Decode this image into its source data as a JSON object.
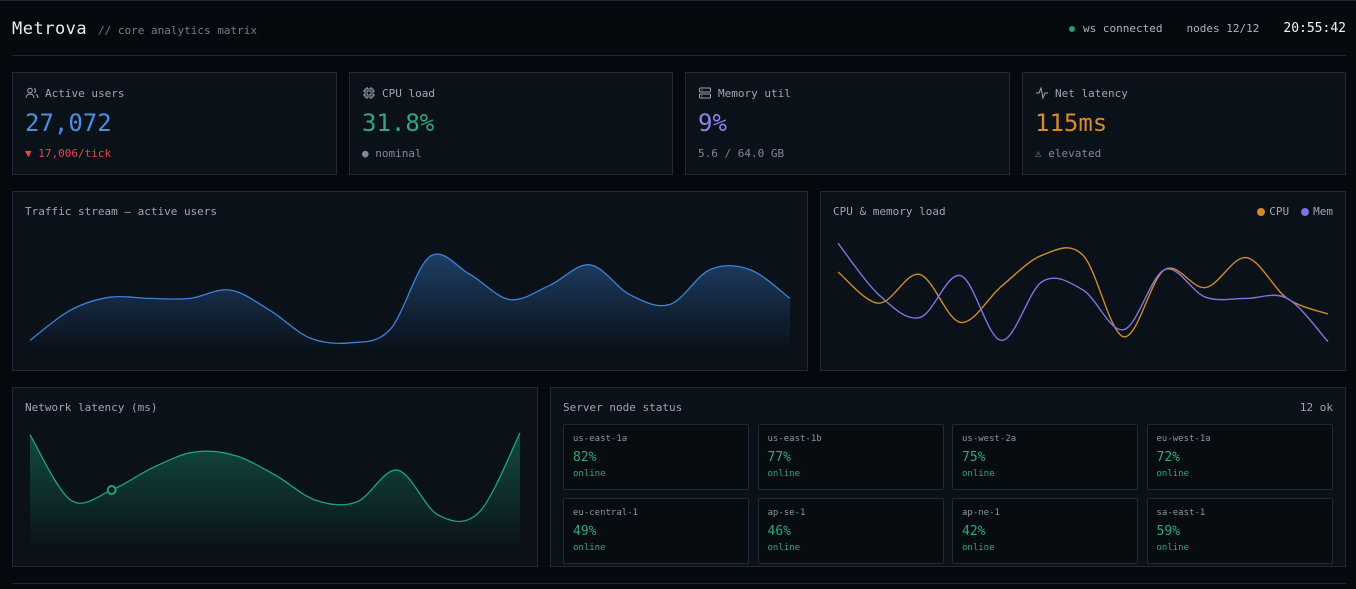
{
  "header": {
    "brand": "Metrova",
    "tagline": "// core analytics matrix",
    "status": "ws connected",
    "nodes": "nodes 12/12",
    "clock": "20:55:42"
  },
  "kpis": [
    {
      "label": "Active users",
      "value": "27,072",
      "note": "▼ 17,006/tick"
    },
    {
      "label": "CPU load",
      "value": "31.8%",
      "note": "● nominal"
    },
    {
      "label": "Memory util",
      "value": "9%",
      "note": "5.6 / 64.0 GB"
    },
    {
      "label": "Net latency",
      "value": "115ms",
      "note": "⚠ elevated"
    }
  ],
  "chart_data": [
    {
      "type": "area",
      "title": "Traffic stream — active users",
      "color": "#3b82d8",
      "ylim": [
        0,
        100
      ],
      "values": [
        8,
        33,
        44,
        43,
        43,
        50,
        33,
        10,
        6,
        17,
        78,
        63,
        42,
        54,
        71,
        46,
        38,
        67,
        67,
        43
      ]
    },
    {
      "type": "line",
      "title": "CPU & memory load",
      "ylim": [
        0,
        100
      ],
      "legend": "top-right",
      "series": [
        {
          "name": "CPU",
          "color": "#d08a2a",
          "values": [
            65,
            39,
            63,
            23,
            53,
            79,
            79,
            11,
            67,
            52,
            77,
            43,
            30
          ]
        },
        {
          "name": "Mem",
          "color": "#7c74e0",
          "values": [
            89,
            46,
            27,
            62,
            8,
            57,
            50,
            17,
            67,
            44,
            43,
            43,
            7
          ]
        }
      ]
    },
    {
      "type": "area",
      "title": "Network latency (ms)",
      "color": "#1fa37a",
      "ylim": [
        0,
        200
      ],
      "highlight": 2,
      "values": [
        192,
        83,
        100,
        137,
        163,
        158,
        125,
        83,
        80,
        133,
        58,
        63,
        195
      ]
    }
  ],
  "node_status": {
    "title": "Server node status",
    "summary": "12 ok",
    "nodes": [
      {
        "name": "us-east-1a",
        "load": "82%",
        "status": "online"
      },
      {
        "name": "us-east-1b",
        "load": "77%",
        "status": "online"
      },
      {
        "name": "us-west-2a",
        "load": "75%",
        "status": "online"
      },
      {
        "name": "eu-west-1a",
        "load": "72%",
        "status": "online"
      },
      {
        "name": "eu-central-1",
        "load": "49%",
        "status": "online"
      },
      {
        "name": "ap-se-1",
        "load": "46%",
        "status": "online"
      },
      {
        "name": "ap-ne-1",
        "load": "42%",
        "status": "online"
      },
      {
        "name": "sa-east-1",
        "load": "59%",
        "status": "online"
      }
    ]
  }
}
